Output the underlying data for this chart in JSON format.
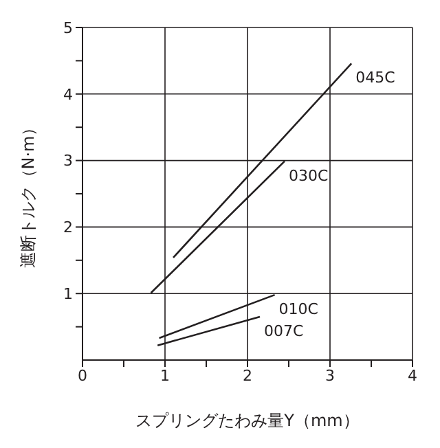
{
  "chart_data": {
    "type": "line",
    "xlabel": "スプリングたわみ量Y（mm）",
    "ylabel": "遮断トルク（N·m）",
    "xlim": [
      0,
      4
    ],
    "xticks": [
      0,
      {
        "value": 0.5,
        "label": null
      },
      1,
      {
        "value": 1.5,
        "label": null
      },
      2,
      {
        "value": 2.5,
        "label": null
      },
      3,
      {
        "value": 3.5,
        "label": null
      },
      4
    ],
    "ylim": [
      0,
      5
    ],
    "yticks": [
      {
        "value": 0.5,
        "label": null
      },
      1,
      {
        "value": 1.5,
        "label": null
      },
      2,
      {
        "value": 2.5,
        "label": null
      },
      3,
      {
        "value": 3.5,
        "label": null
      },
      4,
      {
        "value": 4.5,
        "label": null
      },
      5
    ],
    "grid": true,
    "legend": false,
    "marker": "none",
    "line_style": "solid",
    "series": [
      {
        "name": "045C",
        "color": "#231f20",
        "x": [
          1.1,
          3.26
        ],
        "values": [
          1.54,
          4.46
        ]
      },
      {
        "name": "030C",
        "color": "#231f20",
        "x": [
          0.83,
          2.45
        ],
        "values": [
          1.01,
          2.99
        ]
      },
      {
        "name": "010C",
        "color": "#231f20",
        "x": [
          0.93,
          2.33
        ],
        "values": [
          0.33,
          0.98
        ]
      },
      {
        "name": "007C",
        "color": "#231f20",
        "x": [
          0.91,
          2.15
        ],
        "values": [
          0.22,
          0.65
        ]
      }
    ]
  }
}
